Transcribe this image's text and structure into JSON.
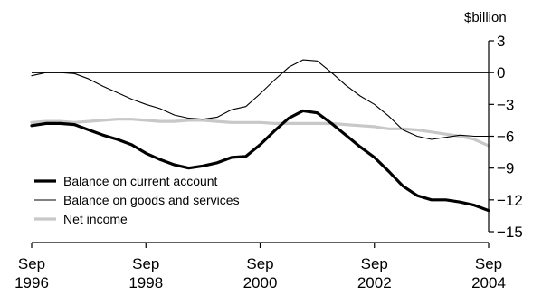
{
  "chart_data": {
    "type": "line",
    "title": "",
    "xlabel": "",
    "ylabel": "$billion",
    "ylim": [
      -15,
      3
    ],
    "y_ticks": [
      3,
      0,
      -3,
      -6,
      -9,
      -12,
      -15
    ],
    "y_tick_labels": [
      "3",
      "0",
      "−3",
      "−6",
      "−9",
      "−12",
      "−15"
    ],
    "x_range": [
      1996.75,
      2004.75
    ],
    "x_ticks": [
      {
        "x": 1996.75,
        "top": "Sep",
        "bottom": "1996"
      },
      {
        "x": 1998.75,
        "top": "Sep",
        "bottom": "1998"
      },
      {
        "x": 2000.75,
        "top": "Sep",
        "bottom": "2000"
      },
      {
        "x": 2002.75,
        "top": "Sep",
        "bottom": "2002"
      },
      {
        "x": 2004.75,
        "top": "Sep",
        "bottom": "2004"
      }
    ],
    "zero_line": 0,
    "legend_position": "bottom-left",
    "x": [
      1996.75,
      1997.0,
      1997.25,
      1997.5,
      1997.75,
      1998.0,
      1998.25,
      1998.5,
      1998.75,
      1999.0,
      1999.25,
      1999.5,
      1999.75,
      2000.0,
      2000.25,
      2000.5,
      2000.75,
      2001.0,
      2001.25,
      2001.5,
      2001.75,
      2002.0,
      2002.25,
      2002.5,
      2002.75,
      2003.0,
      2003.25,
      2003.5,
      2003.75,
      2004.0,
      2004.25,
      2004.5,
      2004.75
    ],
    "series": [
      {
        "name": "Balance on current account",
        "color": "#000000",
        "width": 3.2,
        "values": [
          -5.0,
          -4.8,
          -4.8,
          -4.9,
          -5.4,
          -5.9,
          -6.3,
          -6.8,
          -7.6,
          -8.2,
          -8.7,
          -9.0,
          -8.8,
          -8.5,
          -8.0,
          -7.9,
          -6.8,
          -5.5,
          -4.3,
          -3.6,
          -3.8,
          -4.8,
          -5.9,
          -7.0,
          -8.0,
          -9.3,
          -10.7,
          -11.6,
          -12.0,
          -12.0,
          -12.2,
          -12.5,
          -13.0
        ]
      },
      {
        "name": "Balance on goods and services",
        "color": "#000000",
        "width": 1.1,
        "values": [
          -0.3,
          0.0,
          0.0,
          -0.1,
          -0.6,
          -1.3,
          -1.9,
          -2.5,
          -3.0,
          -3.4,
          -4.0,
          -4.3,
          -4.4,
          -4.2,
          -3.5,
          -3.2,
          -2.0,
          -0.7,
          0.5,
          1.2,
          1.1,
          0.0,
          -1.2,
          -2.2,
          -3.0,
          -4.1,
          -5.4,
          -6.0,
          -6.3,
          -6.1,
          -5.9,
          -6.0,
          -6.0
        ]
      },
      {
        "name": "Net income",
        "color": "#c8c8c8",
        "width": 3.2,
        "values": [
          -4.7,
          -4.6,
          -4.6,
          -4.7,
          -4.6,
          -4.5,
          -4.4,
          -4.4,
          -4.5,
          -4.6,
          -4.6,
          -4.5,
          -4.5,
          -4.6,
          -4.7,
          -4.7,
          -4.7,
          -4.8,
          -4.8,
          -4.8,
          -4.8,
          -4.8,
          -4.9,
          -5.0,
          -5.1,
          -5.3,
          -5.3,
          -5.4,
          -5.6,
          -5.8,
          -6.0,
          -6.3,
          -6.9
        ]
      }
    ]
  }
}
